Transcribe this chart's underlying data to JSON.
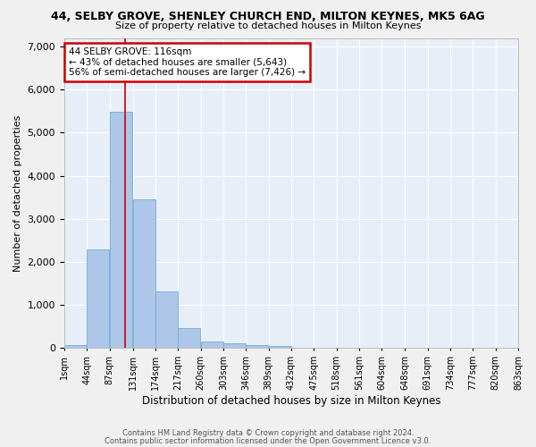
{
  "title": "44, SELBY GROVE, SHENLEY CHURCH END, MILTON KEYNES, MK5 6AG",
  "subtitle": "Size of property relative to detached houses in Milton Keynes",
  "xlabel": "Distribution of detached houses by size in Milton Keynes",
  "ylabel": "Number of detached properties",
  "bar_color": "#aec6e8",
  "bar_edge_color": "#6aafd6",
  "background_color": "#e8eef8",
  "grid_color": "#ffffff",
  "annotation_text": "44 SELBY GROVE: 116sqm\n← 43% of detached houses are smaller (5,643)\n56% of semi-detached houses are larger (7,426) →",
  "annotation_box_color": "#ffffff",
  "annotation_box_edge": "#cc0000",
  "redline_x": 116,
  "footer_line1": "Contains HM Land Registry data © Crown copyright and database right 2024.",
  "footer_line2": "Contains public sector information licensed under the Open Government Licence v3.0.",
  "bin_edges": [
    1,
    44,
    87,
    131,
    174,
    217,
    260,
    303,
    346,
    389,
    432,
    475,
    518,
    561,
    604,
    648,
    691,
    734,
    777,
    820,
    863
  ],
  "bar_heights": [
    75,
    2280,
    5480,
    3450,
    1310,
    460,
    155,
    110,
    75,
    55,
    0,
    0,
    0,
    0,
    0,
    0,
    0,
    0,
    0,
    0
  ],
  "ylim": [
    0,
    7200
  ],
  "yticks": [
    0,
    1000,
    2000,
    3000,
    4000,
    5000,
    6000,
    7000
  ]
}
